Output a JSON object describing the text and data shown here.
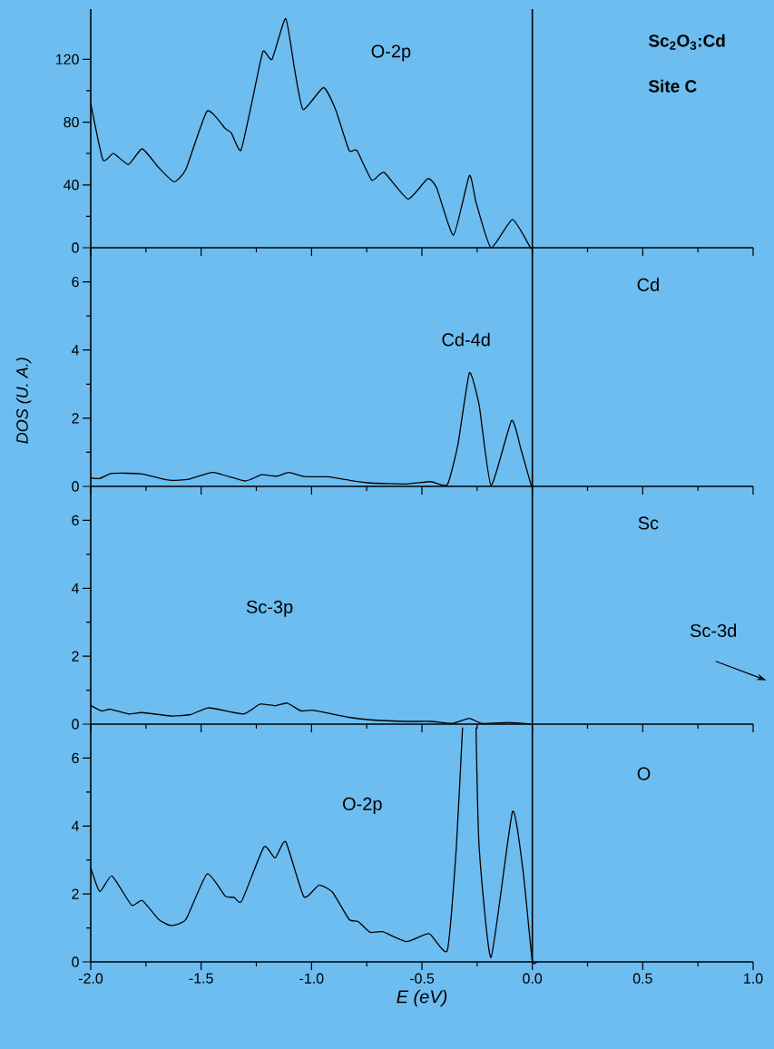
{
  "chart_data": [
    {
      "type": "line",
      "annotations": [
        "Sc$_{2}$O$_{3}$:Cd",
        "Site C",
        "O-2p"
      ],
      "x": [
        -2.0,
        -1.945,
        -1.897,
        -1.829,
        -1.767,
        -1.692,
        -1.623,
        -1.569,
        -1.473,
        -1.391,
        -1.363,
        -1.32,
        -1.268,
        -1.22,
        -1.179,
        -1.117,
        -1.076,
        -1.038,
        -0.946,
        -0.891,
        -0.83,
        -0.795,
        -0.727,
        -0.672,
        -0.563,
        -0.474,
        -0.433,
        -0.357,
        -0.285,
        -0.255,
        -0.187,
        -0.09,
        -0.008,
        0.0
      ],
      "series": [
        {
          "color": "#000000",
          "values": [
            92,
            56,
            60,
            53,
            63,
            51,
            42,
            50,
            87,
            76,
            73,
            62,
            94,
            125,
            120,
            146,
            113,
            88,
            102,
            88,
            62,
            62,
            43,
            48,
            31,
            44,
            38,
            8,
            46,
            29,
            0,
            18,
            0,
            0
          ]
        }
      ],
      "xlim": [
        -2,
        1
      ],
      "ylim": [
        0,
        152
      ],
      "xticks": [
        -2,
        -1.5,
        -1,
        -0.5,
        0,
        0.5,
        1
      ],
      "yticks": [
        0,
        40,
        80,
        120
      ],
      "tick_labels": "y",
      "grid": false,
      "ref_lines": [
        {
          "axis": "x",
          "value": 0,
          "color": "#000000"
        }
      ]
    },
    {
      "type": "line",
      "ylabel": "DOS (U. A.)",
      "annotations": [
        "Cd",
        "Cd-4d"
      ],
      "x": [
        -2.0,
        -1.959,
        -1.904,
        -1.774,
        -1.644,
        -1.555,
        -1.446,
        -1.302,
        -1.227,
        -1.158,
        -1.103,
        -1.035,
        -0.925,
        -0.83,
        -0.734,
        -0.57,
        -0.46,
        -0.385,
        -0.337,
        -0.285,
        -0.241,
        -0.187,
        -0.094,
        -0.05,
        -0.005,
        0.0
      ],
      "series": [
        {
          "color": "#000000",
          "values": [
            0.25,
            0.23,
            0.38,
            0.37,
            0.18,
            0.21,
            0.41,
            0.16,
            0.34,
            0.3,
            0.41,
            0.29,
            0.28,
            0.18,
            0.1,
            0.07,
            0.14,
            0.05,
            1.23,
            3.33,
            2.39,
            0.03,
            1.93,
            1.05,
            0.03,
            0.0
          ]
        }
      ],
      "xlim": [
        -2,
        1
      ],
      "ylim": [
        0,
        7
      ],
      "xticks": [
        -2,
        -1.5,
        -1,
        -0.5,
        0,
        0.5,
        1
      ],
      "yticks": [
        0,
        2,
        4,
        6
      ],
      "tick_labels": "y",
      "grid": false,
      "ref_lines": [
        {
          "axis": "x",
          "value": 0,
          "color": "#000000"
        }
      ]
    },
    {
      "type": "line",
      "annotations": [
        "Sc",
        "Sc-3p",
        "Sc-3d"
      ],
      "x": [
        -2.0,
        -1.952,
        -1.911,
        -1.829,
        -1.767,
        -1.637,
        -1.548,
        -1.466,
        -1.309,
        -1.233,
        -1.165,
        -1.11,
        -1.048,
        -0.994,
        -0.83,
        -0.72,
        -0.57,
        -0.46,
        -0.364,
        -0.285,
        -0.228,
        -0.105,
        -0.008
      ],
      "series": [
        {
          "color": "#000000",
          "values": [
            0.55,
            0.39,
            0.44,
            0.3,
            0.34,
            0.24,
            0.28,
            0.48,
            0.3,
            0.59,
            0.54,
            0.62,
            0.39,
            0.41,
            0.2,
            0.12,
            0.08,
            0.08,
            0.02,
            0.17,
            0.02,
            0.05,
            0.0
          ]
        }
      ],
      "xlim": [
        -2,
        1
      ],
      "ylim": [
        0,
        7
      ],
      "xticks": [
        -2,
        -1.5,
        -1,
        -0.5,
        0,
        0.5,
        1
      ],
      "yticks": [
        0,
        2,
        4,
        6
      ],
      "tick_labels": "y",
      "grid": false,
      "ref_lines": [
        {
          "axis": "x",
          "value": 0,
          "color": "#000000"
        }
      ]
    },
    {
      "type": "line",
      "xlabel": "E (eV)",
      "annotations": [
        "O",
        "O-2p"
      ],
      "x": [
        -2.0,
        -1.959,
        -1.904,
        -1.815,
        -1.767,
        -1.692,
        -1.637,
        -1.569,
        -1.473,
        -1.391,
        -1.35,
        -1.316,
        -1.216,
        -1.165,
        -1.117,
        -1.035,
        -0.966,
        -0.905,
        -0.83,
        -0.789,
        -0.734,
        -0.679,
        -0.57,
        -0.467,
        -0.385,
        -0.344,
        -0.316,
        -0.285,
        -0.255,
        -0.241,
        -0.187,
        -0.09,
        -0.042,
        -0.001,
        0.02
      ],
      "series": [
        {
          "color": "#000000",
          "values": [
            2.77,
            2.07,
            2.53,
            1.67,
            1.81,
            1.25,
            1.07,
            1.25,
            2.59,
            1.94,
            1.9,
            1.79,
            3.38,
            3.06,
            3.54,
            1.92,
            2.26,
            2.05,
            1.25,
            1.19,
            0.87,
            0.89,
            0.6,
            0.83,
            0.34,
            3.39,
            6.9,
            null,
            6.9,
            3.39,
            0.13,
            4.42,
            2.68,
            0.07,
            0.0
          ]
        }
      ],
      "xlim": [
        -2,
        1
      ],
      "ylim": [
        0,
        7
      ],
      "xticks": [
        {
          "value": -2,
          "label": "-2.0"
        },
        {
          "value": -1.5,
          "label": "-1.5"
        },
        {
          "value": -1,
          "label": "-1.0"
        },
        {
          "value": -0.5,
          "label": "-0.5"
        },
        {
          "value": 0,
          "label": "0.0"
        },
        {
          "value": 0.5,
          "label": "0.5"
        },
        {
          "value": 1,
          "label": "1.0"
        }
      ],
      "yticks": [
        0,
        2,
        4,
        6
      ],
      "grid": false,
      "ref_lines": [
        {
          "axis": "x",
          "value": 0,
          "color": "#000000"
        }
      ]
    }
  ]
}
